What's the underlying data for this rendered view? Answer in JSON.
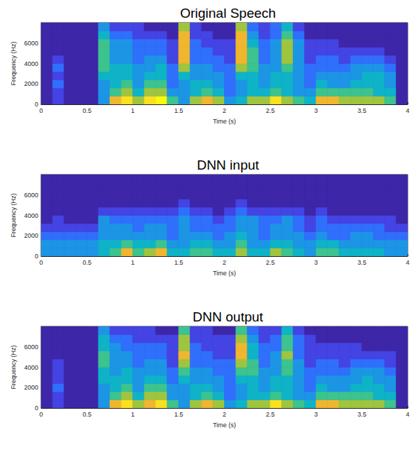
{
  "chart_data": [
    {
      "type": "heatmap",
      "title": "Original Speech",
      "x_label": "Time (s)",
      "y_label": "Frequency (Hz)",
      "xlim": [
        0,
        4
      ],
      "xticks": [
        0,
        0.5,
        1,
        1.5,
        2,
        2.5,
        3,
        3.5,
        4
      ],
      "ylim": [
        0,
        8000
      ],
      "yticks": [
        0,
        2000,
        4000,
        6000
      ],
      "x_edges": [
        0,
        0.125,
        0.25,
        0.375,
        0.5,
        0.625,
        0.75,
        0.875,
        1,
        1.125,
        1.25,
        1.375,
        1.5,
        1.625,
        1.75,
        1.875,
        2,
        2.125,
        2.25,
        2.375,
        2.5,
        2.625,
        2.75,
        2.875,
        3,
        3.125,
        3.25,
        3.375,
        3.5,
        3.625,
        3.75,
        3.875,
        4
      ],
      "y_edges": [
        0,
        800,
        1600,
        2400,
        3200,
        4000,
        4800,
        5600,
        6400,
        7200,
        8000
      ],
      "zlim": [
        0,
        9
      ],
      "cells": [
        [
          0,
          0,
          0,
          0,
          0,
          0,
          0,
          0,
          0,
          0
        ],
        [
          1,
          1,
          2,
          1,
          2,
          1,
          0,
          0,
          0,
          0
        ],
        [
          0,
          0,
          0,
          0,
          0,
          0,
          0,
          0,
          0,
          0
        ],
        [
          0,
          0,
          0,
          0,
          0,
          0,
          0,
          0,
          0,
          0
        ],
        [
          0,
          0,
          0,
          0,
          0,
          0,
          0,
          0,
          0,
          0
        ],
        [
          3,
          3,
          3,
          4,
          5,
          5,
          5,
          5,
          4,
          3
        ],
        [
          7,
          5,
          4,
          4,
          4,
          3,
          3,
          3,
          2,
          1
        ],
        [
          8,
          6,
          5,
          4,
          4,
          3,
          3,
          3,
          2,
          1
        ],
        [
          6,
          4,
          3,
          3,
          3,
          2,
          2,
          2,
          1,
          1
        ],
        [
          8,
          6,
          5,
          4,
          3,
          3,
          2,
          2,
          1,
          0
        ],
        [
          9,
          6,
          5,
          4,
          4,
          3,
          2,
          2,
          1,
          0
        ],
        [
          5,
          3,
          2,
          2,
          2,
          1,
          1,
          1,
          0,
          0
        ],
        [
          3,
          3,
          3,
          4,
          6,
          7,
          7,
          7,
          7,
          6
        ],
        [
          6,
          4,
          4,
          3,
          3,
          2,
          2,
          2,
          1,
          1
        ],
        [
          7,
          5,
          4,
          3,
          3,
          2,
          2,
          1,
          1,
          0
        ],
        [
          6,
          4,
          3,
          3,
          2,
          2,
          1,
          1,
          0,
          0
        ],
        [
          3,
          2,
          2,
          2,
          2,
          1,
          1,
          1,
          0,
          0
        ],
        [
          4,
          3,
          3,
          4,
          6,
          7,
          7,
          7,
          7,
          6
        ],
        [
          6,
          4,
          4,
          4,
          5,
          5,
          5,
          4,
          3,
          2
        ],
        [
          6,
          4,
          3,
          3,
          3,
          2,
          2,
          2,
          1,
          1
        ],
        [
          8,
          5,
          4,
          4,
          3,
          3,
          3,
          3,
          2,
          2
        ],
        [
          6,
          4,
          4,
          4,
          5,
          6,
          6,
          6,
          5,
          4
        ],
        [
          5,
          3,
          3,
          3,
          3,
          3,
          3,
          3,
          2,
          1
        ],
        [
          4,
          3,
          2,
          2,
          2,
          1,
          1,
          1,
          0,
          0
        ],
        [
          7,
          5,
          4,
          3,
          2,
          2,
          1,
          1,
          0,
          0
        ],
        [
          7,
          5,
          3,
          3,
          2,
          2,
          1,
          1,
          0,
          0
        ],
        [
          6,
          5,
          3,
          3,
          2,
          1,
          1,
          0,
          0,
          0
        ],
        [
          6,
          5,
          4,
          3,
          3,
          2,
          1,
          0,
          0,
          0
        ],
        [
          6,
          5,
          4,
          4,
          3,
          2,
          1,
          0,
          0,
          0
        ],
        [
          6,
          4,
          4,
          4,
          3,
          2,
          1,
          0,
          0,
          0
        ],
        [
          5,
          4,
          3,
          3,
          2,
          1,
          0,
          0,
          0,
          0
        ],
        [
          0,
          0,
          0,
          0,
          0,
          0,
          0,
          0,
          0,
          0
        ]
      ]
    },
    {
      "type": "heatmap",
      "title": "DNN input",
      "x_label": "Time (s)",
      "y_label": "Frequency (Hz)",
      "xlim": [
        0,
        4
      ],
      "xticks": [
        0,
        0.5,
        1,
        1.5,
        2,
        2.5,
        3,
        3.5,
        4
      ],
      "ylim": [
        0,
        8000
      ],
      "yticks": [
        0,
        2000,
        4000,
        6000
      ],
      "x_edges": [
        0,
        0.125,
        0.25,
        0.375,
        0.5,
        0.625,
        0.75,
        0.875,
        1,
        1.125,
        1.25,
        1.375,
        1.5,
        1.625,
        1.75,
        1.875,
        2,
        2.125,
        2.25,
        2.375,
        2.5,
        2.625,
        2.75,
        2.875,
        3,
        3.125,
        3.25,
        3.375,
        3.5,
        3.625,
        3.75,
        3.875,
        4
      ],
      "y_edges": [
        0,
        800,
        1600,
        2400,
        3200,
        4000,
        4800,
        5600,
        6400,
        7200,
        8000
      ],
      "zlim": [
        0,
        9
      ],
      "cells": [
        [
          3,
          3,
          2,
          1,
          0,
          0,
          0,
          0,
          0,
          0
        ],
        [
          3,
          3,
          2,
          1,
          1,
          0,
          0,
          0,
          0,
          0
        ],
        [
          3,
          3,
          2,
          1,
          0,
          0,
          0,
          0,
          0,
          0
        ],
        [
          3,
          3,
          2,
          1,
          0,
          0,
          0,
          0,
          0,
          0
        ],
        [
          3,
          3,
          2,
          1,
          0,
          0,
          0,
          0,
          0,
          0
        ],
        [
          4,
          4,
          3,
          3,
          3,
          1,
          0,
          0,
          0,
          0
        ],
        [
          5,
          4,
          3,
          3,
          2,
          1,
          0,
          0,
          0,
          0
        ],
        [
          7,
          5,
          3,
          3,
          2,
          1,
          0,
          0,
          0,
          0
        ],
        [
          5,
          4,
          3,
          2,
          2,
          1,
          0,
          0,
          0,
          0
        ],
        [
          6,
          4,
          3,
          3,
          2,
          1,
          0,
          0,
          0,
          0
        ],
        [
          7,
          5,
          3,
          3,
          2,
          1,
          0,
          0,
          0,
          0
        ],
        [
          4,
          3,
          2,
          2,
          2,
          1,
          0,
          0,
          0,
          0
        ],
        [
          4,
          3,
          3,
          3,
          3,
          2,
          1,
          0,
          0,
          0
        ],
        [
          5,
          4,
          3,
          2,
          2,
          1,
          0,
          0,
          0,
          0
        ],
        [
          5,
          4,
          3,
          2,
          2,
          1,
          0,
          0,
          0,
          0
        ],
        [
          4,
          3,
          2,
          2,
          1,
          0,
          0,
          0,
          0,
          0
        ],
        [
          4,
          3,
          3,
          2,
          2,
          1,
          0,
          0,
          0,
          0
        ],
        [
          6,
          5,
          4,
          3,
          3,
          2,
          1,
          0,
          0,
          0
        ],
        [
          4,
          3,
          3,
          3,
          3,
          1,
          0,
          0,
          0,
          0
        ],
        [
          4,
          3,
          2,
          2,
          2,
          1,
          0,
          0,
          0,
          0
        ],
        [
          6,
          4,
          3,
          3,
          2,
          1,
          0,
          0,
          0,
          0
        ],
        [
          5,
          4,
          3,
          3,
          3,
          1,
          0,
          0,
          0,
          0
        ],
        [
          4,
          3,
          3,
          2,
          2,
          1,
          0,
          0,
          0,
          0
        ],
        [
          3,
          3,
          2,
          1,
          1,
          0,
          0,
          0,
          0,
          0
        ],
        [
          5,
          4,
          3,
          2,
          2,
          1,
          0,
          0,
          0,
          0
        ],
        [
          5,
          4,
          2,
          2,
          1,
          0,
          0,
          0,
          0,
          0
        ],
        [
          4,
          3,
          2,
          2,
          1,
          0,
          0,
          0,
          0,
          0
        ],
        [
          4,
          3,
          3,
          2,
          1,
          0,
          0,
          0,
          0,
          0
        ],
        [
          4,
          3,
          3,
          2,
          1,
          0,
          0,
          0,
          0,
          0
        ],
        [
          4,
          3,
          2,
          2,
          1,
          0,
          0,
          0,
          0,
          0
        ],
        [
          3,
          3,
          2,
          1,
          1,
          0,
          0,
          0,
          0,
          0
        ],
        [
          3,
          3,
          2,
          1,
          0,
          0,
          0,
          0,
          0,
          0
        ]
      ]
    },
    {
      "type": "heatmap",
      "title": "DNN output",
      "x_label": "Time (s)",
      "y_label": "Frequency (Hz)",
      "xlim": [
        0,
        4
      ],
      "xticks": [
        0,
        0.5,
        1,
        1.5,
        2,
        2.5,
        3,
        3.5,
        4
      ],
      "ylim": [
        0,
        8000
      ],
      "yticks": [
        0,
        2000,
        4000,
        6000
      ],
      "x_edges": [
        0,
        0.125,
        0.25,
        0.375,
        0.5,
        0.625,
        0.75,
        0.875,
        1,
        1.125,
        1.25,
        1.375,
        1.5,
        1.625,
        1.75,
        1.875,
        2,
        2.125,
        2.25,
        2.375,
        2.5,
        2.625,
        2.75,
        2.875,
        3,
        3.125,
        3.25,
        3.375,
        3.5,
        3.625,
        3.75,
        3.875,
        4
      ],
      "y_edges": [
        0,
        800,
        1600,
        2400,
        3200,
        4000,
        4800,
        5600,
        6400,
        7200,
        8000
      ],
      "zlim": [
        0,
        9
      ],
      "cells": [
        [
          0,
          0,
          0,
          0,
          0,
          0,
          0,
          0,
          0,
          0
        ],
        [
          1,
          1,
          2,
          1,
          1,
          1,
          0,
          0,
          0,
          0
        ],
        [
          0,
          0,
          0,
          0,
          0,
          0,
          0,
          0,
          0,
          0
        ],
        [
          0,
          0,
          0,
          0,
          0,
          0,
          0,
          0,
          0,
          0
        ],
        [
          0,
          0,
          0,
          0,
          0,
          0,
          0,
          0,
          0,
          0
        ],
        [
          3,
          3,
          3,
          4,
          4,
          5,
          5,
          4,
          4,
          3
        ],
        [
          7,
          5,
          4,
          4,
          3,
          3,
          3,
          3,
          2,
          1
        ],
        [
          8,
          6,
          5,
          4,
          4,
          3,
          3,
          2,
          2,
          1
        ],
        [
          6,
          4,
          3,
          3,
          3,
          2,
          2,
          2,
          1,
          1
        ],
        [
          7,
          6,
          5,
          4,
          3,
          3,
          2,
          2,
          1,
          1
        ],
        [
          8,
          6,
          5,
          4,
          3,
          3,
          2,
          2,
          1,
          0
        ],
        [
          5,
          3,
          3,
          2,
          2,
          1,
          1,
          1,
          1,
          0
        ],
        [
          3,
          3,
          3,
          4,
          5,
          6,
          7,
          6,
          6,
          5
        ],
        [
          6,
          4,
          4,
          3,
          3,
          2,
          2,
          2,
          1,
          1
        ],
        [
          7,
          5,
          4,
          3,
          3,
          2,
          2,
          1,
          1,
          1
        ],
        [
          6,
          4,
          3,
          3,
          2,
          2,
          1,
          1,
          1,
          0
        ],
        [
          3,
          2,
          2,
          2,
          2,
          2,
          1,
          1,
          1,
          0
        ],
        [
          4,
          3,
          3,
          4,
          5,
          6,
          7,
          7,
          6,
          5
        ],
        [
          6,
          4,
          4,
          4,
          5,
          5,
          4,
          4,
          3,
          2
        ],
        [
          6,
          4,
          3,
          3,
          3,
          2,
          2,
          2,
          1,
          1
        ],
        [
          8,
          5,
          4,
          4,
          3,
          3,
          3,
          2,
          2,
          1
        ],
        [
          6,
          4,
          4,
          4,
          5,
          5,
          6,
          5,
          5,
          4
        ],
        [
          5,
          3,
          3,
          3,
          3,
          3,
          2,
          2,
          2,
          1
        ],
        [
          4,
          3,
          2,
          2,
          2,
          1,
          1,
          1,
          1,
          0
        ],
        [
          7,
          5,
          4,
          3,
          2,
          2,
          1,
          1,
          0,
          0
        ],
        [
          7,
          5,
          3,
          3,
          2,
          2,
          1,
          1,
          0,
          0
        ],
        [
          6,
          5,
          3,
          3,
          2,
          1,
          1,
          1,
          0,
          0
        ],
        [
          6,
          5,
          4,
          3,
          3,
          2,
          1,
          1,
          0,
          0
        ],
        [
          6,
          5,
          4,
          4,
          3,
          2,
          1,
          0,
          0,
          0
        ],
        [
          6,
          4,
          4,
          3,
          3,
          2,
          1,
          0,
          0,
          0
        ],
        [
          5,
          4,
          3,
          3,
          2,
          1,
          1,
          0,
          0,
          0
        ],
        [
          0,
          0,
          0,
          0,
          0,
          0,
          0,
          0,
          0,
          0
        ]
      ]
    }
  ]
}
